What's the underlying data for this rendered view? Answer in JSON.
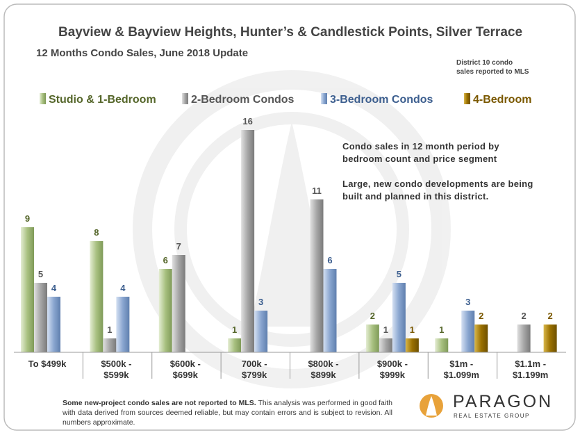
{
  "chart_data": {
    "type": "bar",
    "title": "Bayview & Bayview Heights, Hunter’s & Candlestick Points, Silver Terrace",
    "subtitle": "12 Months Condo Sales, June 2018 Update",
    "note": "District 10 condo\nsales reported to MLS",
    "annotations": [
      "Condo sales in 12 month period by bedroom count and price segment",
      "Large, new condo developments are being built and planned in this district."
    ],
    "categories": [
      "To $499k",
      "$500k -\n$599k",
      "$600k -\n$699k",
      "700k -\n$799k",
      "$800k -\n$899k",
      "$900k -\n$999k",
      "$1m -\n$1.099m",
      "$1.1m -\n$1.199m"
    ],
    "series": [
      {
        "name": "Studio & 1-Bedroom",
        "color": "#a8c080",
        "label_color": "#55662a",
        "values": [
          9,
          8,
          6,
          1,
          null,
          2,
          1,
          null
        ]
      },
      {
        "name": "2-Bedroom Condos",
        "color": "#a6a6a6",
        "label_color": "#555555",
        "values": [
          5,
          1,
          7,
          16,
          11,
          1,
          null,
          2
        ]
      },
      {
        "name": "3-Bedroom Condos",
        "color": "#8aa6d0",
        "label_color": "#3d5f8f",
        "values": [
          4,
          4,
          null,
          3,
          6,
          5,
          3,
          null
        ]
      },
      {
        "name": "4-Bedroom",
        "color": "#9a7000",
        "label_color": "#7a5800",
        "values": [
          null,
          null,
          null,
          null,
          null,
          1,
          2,
          2
        ]
      }
    ]
  },
  "footer": {
    "bold": "Some new-project condo sales are not reported to MLS.",
    "text": "This analysis was performed in good faith with data derived from sources deemed reliable, but may contain errors and is subject to revision. All numbers approximate."
  },
  "logo": {
    "name": "PARAGON",
    "tagline": "REAL ESTATE GROUP"
  }
}
